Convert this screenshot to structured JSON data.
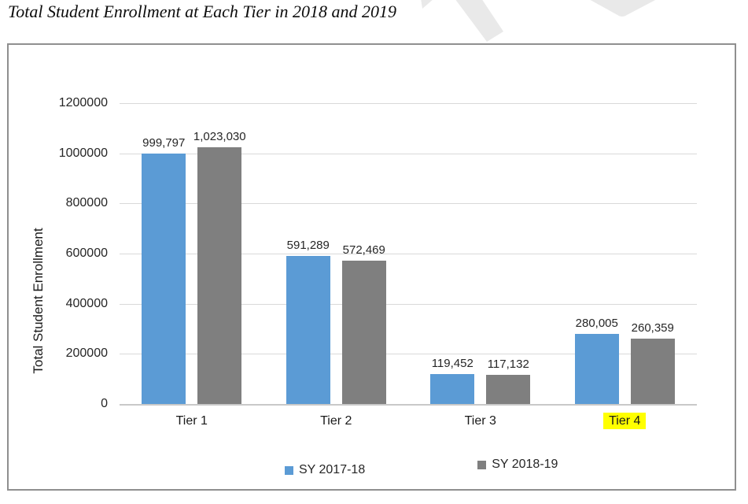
{
  "page_title": "Total Student Enrollment at Each Tier in 2018 and 2019",
  "colors": {
    "series1_blue": "#5B9BD5",
    "series2_gray": "#7F7F7F",
    "gridline": "#D9D9D9",
    "axis_line": "#C9C9C9",
    "frame_border": "#8F8F8F",
    "highlight_yellow": "#FFFF00",
    "watermark_gray": "#E9E9E9",
    "text_dark": "#262626"
  },
  "watermark": {
    "name": "draft-watermark-fragment"
  },
  "chart_data": {
    "type": "bar",
    "title": "Total Student Enrollment at Each Tier in 2018 and 2019",
    "xlabel": "",
    "ylabel": "Total Student Enrollment",
    "categories": [
      "Tier 1",
      "Tier 2",
      "Tier 3",
      "Tier 4"
    ],
    "highlighted_category": "Tier 4",
    "series": [
      {
        "name": "SY 2017-18",
        "color": "#5B9BD5",
        "values": [
          999797,
          591289,
          119452,
          280005
        ],
        "labels": [
          "999,797",
          "591,289",
          "119,452",
          "280,005"
        ]
      },
      {
        "name": "SY 2018-19",
        "color": "#7F7F7F",
        "values": [
          1023030,
          572469,
          117132,
          260359
        ],
        "labels": [
          "1,023,030",
          "572,469",
          "117,132",
          "260,359"
        ]
      }
    ],
    "ylim": [
      0,
      1200000
    ],
    "ytick_interval": 200000,
    "yticks": [
      "1200000",
      "1000000",
      "800000",
      "600000",
      "400000",
      "200000",
      "0"
    ],
    "grid": true,
    "legend_position": "bottom"
  }
}
